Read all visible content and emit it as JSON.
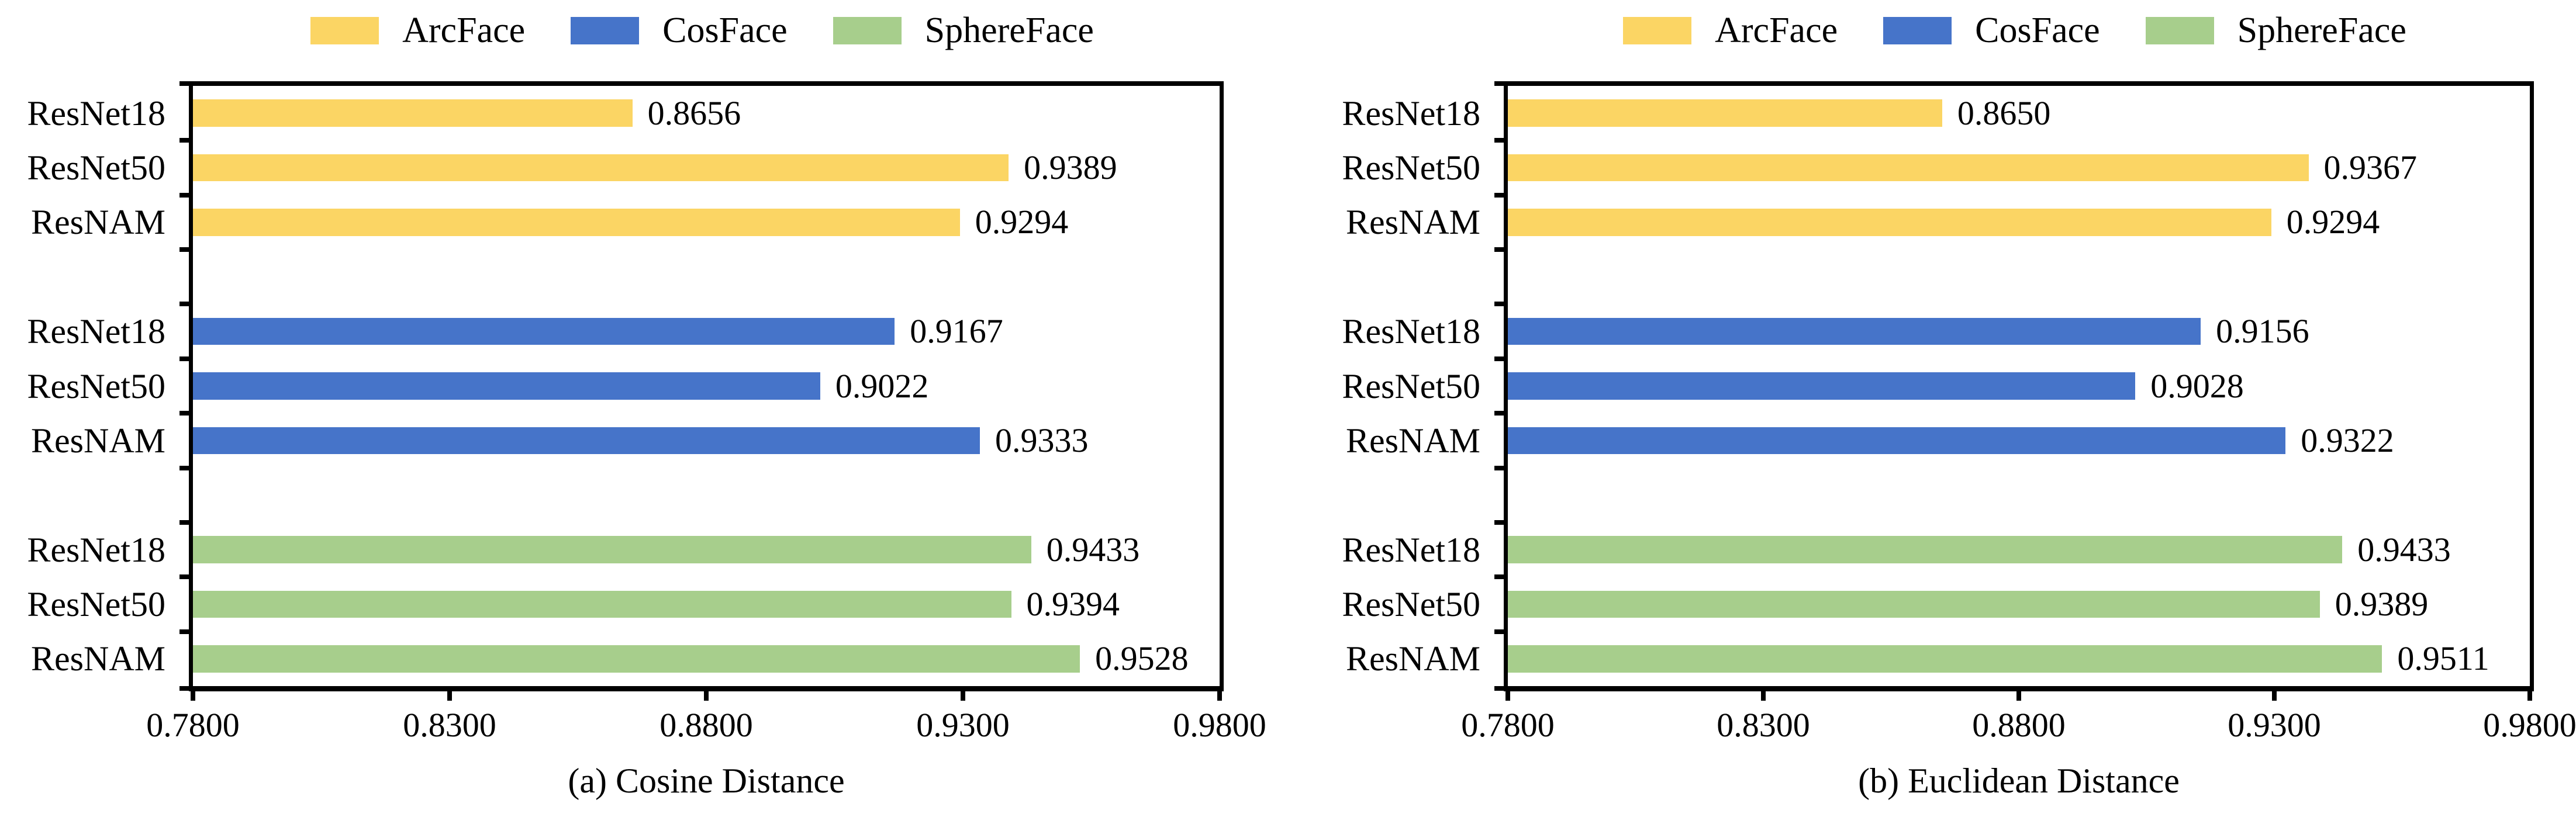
{
  "figure": {
    "background_color": "#FFFFFF",
    "axis_color": "#000000",
    "legend_labels": [
      "ArcFace",
      "CosFace",
      "SphereFace"
    ],
    "legend_colors": [
      "#FBD564",
      "#4674C9",
      "#A7CE8C"
    ]
  },
  "chart_data": [
    {
      "type": "bar",
      "orientation": "horizontal",
      "title": "(a) Cosine Distance",
      "categories": [
        "ResNet18",
        "ResNet50",
        "ResNAM"
      ],
      "series": [
        {
          "name": "ArcFace",
          "color": "#FBD564",
          "values": [
            0.8656,
            0.9389,
            0.9294
          ]
        },
        {
          "name": "CosFace",
          "color": "#4674C9",
          "values": [
            0.9167,
            0.9022,
            0.9333
          ]
        },
        {
          "name": "SphereFace",
          "color": "#A7CE8C",
          "values": [
            0.9433,
            0.9394,
            0.9528
          ]
        }
      ],
      "xlim": [
        0.78,
        0.98
      ],
      "xtick_labels": [
        "0.7800",
        "0.8300",
        "0.8800",
        "0.9300",
        "0.9800"
      ],
      "value_label_decimals": 4,
      "legend_position": "top",
      "grid": false
    },
    {
      "type": "bar",
      "orientation": "horizontal",
      "title": "(b) Euclidean Distance",
      "categories": [
        "ResNet18",
        "ResNet50",
        "ResNAM"
      ],
      "series": [
        {
          "name": "ArcFace",
          "color": "#FBD564",
          "values": [
            0.865,
            0.9367,
            0.9294
          ]
        },
        {
          "name": "CosFace",
          "color": "#4674C9",
          "values": [
            0.9156,
            0.9028,
            0.9322
          ]
        },
        {
          "name": "SphereFace",
          "color": "#A7CE8C",
          "values": [
            0.9433,
            0.9389,
            0.9511
          ]
        }
      ],
      "xlim": [
        0.78,
        0.98
      ],
      "xtick_labels": [
        "0.7800",
        "0.8300",
        "0.8800",
        "0.9300",
        "0.9800"
      ],
      "value_label_decimals": 4,
      "legend_position": "top",
      "grid": false
    }
  ]
}
